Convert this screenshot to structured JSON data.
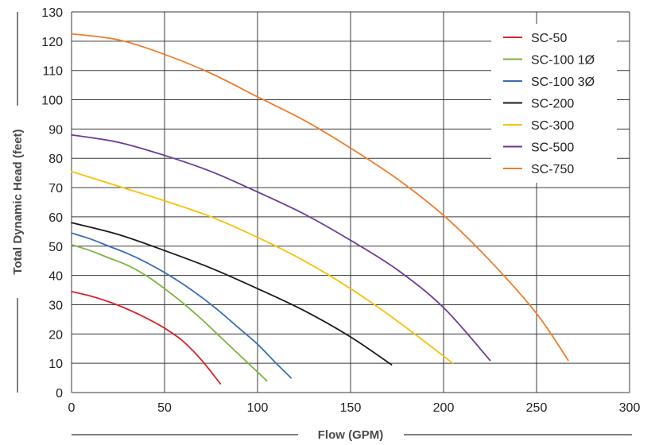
{
  "chart_data": {
    "type": "line",
    "xlabel": "Flow (GPM)",
    "ylabel": "Total Dynamic Head (feet)",
    "xlim": [
      0,
      300
    ],
    "ylim": [
      0,
      130
    ],
    "x_ticks": [
      0,
      50,
      100,
      150,
      200,
      250,
      300
    ],
    "y_ticks": [
      0,
      10,
      20,
      30,
      40,
      50,
      60,
      70,
      80,
      90,
      100,
      110,
      120,
      130
    ],
    "grid": true,
    "legend_position": "top-right",
    "series": [
      {
        "name": "SC-50",
        "color": "#d6252b",
        "points": [
          [
            0,
            34.5
          ],
          [
            10,
            33
          ],
          [
            20,
            31
          ],
          [
            30,
            28.5
          ],
          [
            40,
            25.5
          ],
          [
            50,
            22
          ],
          [
            60,
            17.5
          ],
          [
            70,
            11
          ],
          [
            80,
            3
          ]
        ]
      },
      {
        "name": "SC-100 1Ø",
        "color": "#7db23c",
        "points": [
          [
            0,
            50.5
          ],
          [
            10,
            48.5
          ],
          [
            20,
            46
          ],
          [
            30,
            43.5
          ],
          [
            40,
            40
          ],
          [
            50,
            35.5
          ],
          [
            60,
            30.5
          ],
          [
            70,
            25
          ],
          [
            80,
            19
          ],
          [
            90,
            13
          ],
          [
            100,
            7
          ],
          [
            105,
            4
          ]
        ]
      },
      {
        "name": "SC-100 3Ø",
        "color": "#3b6db5",
        "points": [
          [
            0,
            54.5
          ],
          [
            10,
            52.5
          ],
          [
            20,
            50
          ],
          [
            30,
            47.5
          ],
          [
            40,
            44.5
          ],
          [
            50,
            41
          ],
          [
            60,
            37
          ],
          [
            70,
            32.5
          ],
          [
            80,
            27.5
          ],
          [
            90,
            22
          ],
          [
            100,
            16.5
          ],
          [
            110,
            10
          ],
          [
            118,
            5
          ]
        ]
      },
      {
        "name": "SC-200",
        "color": "#1a1a1a",
        "points": [
          [
            0,
            58
          ],
          [
            25,
            54
          ],
          [
            50,
            48.5
          ],
          [
            75,
            42.5
          ],
          [
            100,
            35.5
          ],
          [
            125,
            28
          ],
          [
            150,
            19
          ],
          [
            172,
            9.5
          ]
        ]
      },
      {
        "name": "SC-300",
        "color": "#f6c200",
        "points": [
          [
            0,
            75.5
          ],
          [
            25,
            70.5
          ],
          [
            50,
            65.5
          ],
          [
            75,
            60
          ],
          [
            100,
            53
          ],
          [
            125,
            45
          ],
          [
            150,
            35.5
          ],
          [
            175,
            24.5
          ],
          [
            205,
            10
          ]
        ]
      },
      {
        "name": "SC-500",
        "color": "#6a3a97",
        "points": [
          [
            0,
            88
          ],
          [
            25,
            85.5
          ],
          [
            50,
            81
          ],
          [
            75,
            75.5
          ],
          [
            100,
            68.5
          ],
          [
            125,
            61
          ],
          [
            150,
            52
          ],
          [
            175,
            42
          ],
          [
            200,
            29
          ],
          [
            225,
            11
          ]
        ]
      },
      {
        "name": "SC-750",
        "color": "#ee7d2c",
        "points": [
          [
            0,
            122.5
          ],
          [
            25,
            120.5
          ],
          [
            50,
            115.5
          ],
          [
            75,
            109
          ],
          [
            100,
            101
          ],
          [
            125,
            93
          ],
          [
            150,
            83.5
          ],
          [
            175,
            73
          ],
          [
            200,
            60.5
          ],
          [
            225,
            45
          ],
          [
            250,
            27
          ],
          [
            267,
            11
          ]
        ]
      }
    ]
  }
}
